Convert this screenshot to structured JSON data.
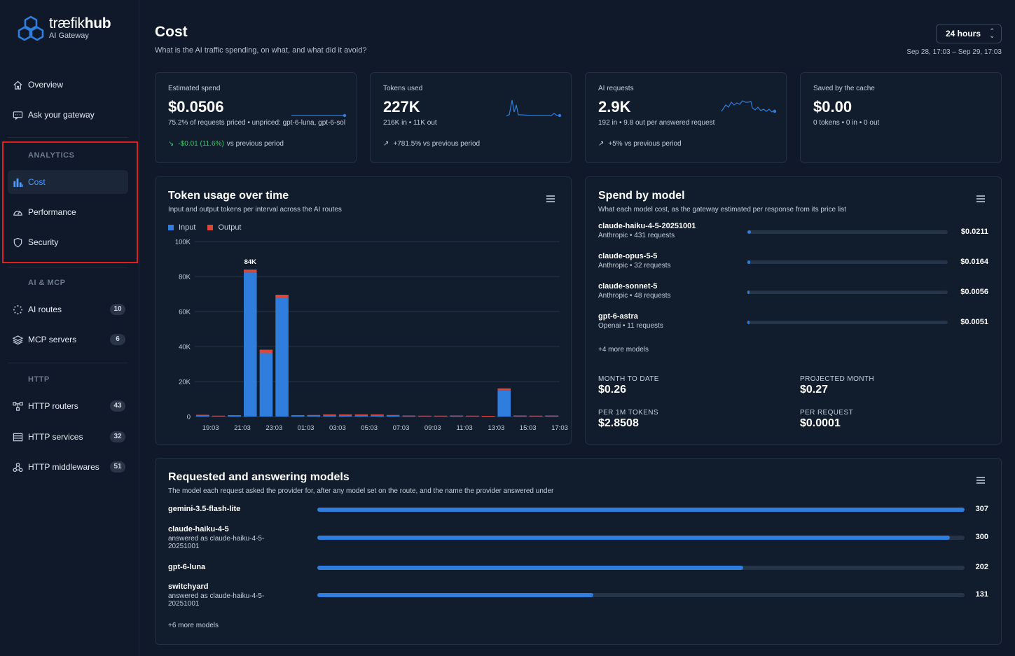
{
  "brand": {
    "name_light": "træfik",
    "name_bold": "hub",
    "subtitle": "AI Gateway"
  },
  "nav": {
    "top": [
      {
        "label": "Overview",
        "icon": "home-icon"
      },
      {
        "label": "Ask your gateway",
        "icon": "chat-icon"
      }
    ],
    "analytics_heading": "ANALYTICS",
    "analytics": [
      {
        "label": "Cost",
        "icon": "bar-chart-icon",
        "active": true
      },
      {
        "label": "Performance",
        "icon": "gauge-icon"
      },
      {
        "label": "Security",
        "icon": "shield-icon"
      }
    ],
    "aimcp_heading": "AI & MCP",
    "aimcp": [
      {
        "label": "AI routes",
        "icon": "spinner-icon",
        "badge": "10"
      },
      {
        "label": "MCP servers",
        "icon": "layers-icon",
        "badge": "6"
      }
    ],
    "http_heading": "HTTP",
    "http": [
      {
        "label": "HTTP routers",
        "icon": "router-icon",
        "badge": "43"
      },
      {
        "label": "HTTP services",
        "icon": "services-icon",
        "badge": "32"
      },
      {
        "label": "HTTP middlewares",
        "icon": "middleware-icon",
        "badge": "51"
      }
    ]
  },
  "header": {
    "title": "Cost",
    "subtitle": "What is the AI traffic spending, on what, and what did it avoid?",
    "range": "24 hours",
    "range_dates": "Sep 28, 17:03 – Sep 29, 17:03"
  },
  "kpis": {
    "spend": {
      "label": "Estimated spend",
      "value": "$0.0506",
      "detail": "75.2% of requests priced • unpriced: gpt-6-luna, gpt-6-sol",
      "trend_value": "-$0.01 (11.6%)",
      "trend_text": "vs previous period"
    },
    "tokens": {
      "label": "Tokens used",
      "value": "227K",
      "detail": "216K in • 11K out",
      "trend_text": "+781.5% vs previous period"
    },
    "requests": {
      "label": "AI requests",
      "value": "2.9K",
      "detail": "192 in • 9.8 out per answered request",
      "trend_text": "+5% vs previous period"
    },
    "cache": {
      "label": "Saved by the cache",
      "value": "$0.00",
      "detail": "0 tokens • 0 in • 0 out"
    }
  },
  "token_usage": {
    "title": "Token usage over time",
    "subtitle": "Input and output tokens per interval across the AI routes",
    "legend_input": "Input",
    "legend_output": "Output",
    "peak_label": "84K"
  },
  "chart_data": {
    "type": "bar",
    "stacked": true,
    "x_tick_labels": [
      "19:03",
      "21:03",
      "23:03",
      "01:03",
      "03:03",
      "05:03",
      "07:03",
      "09:03",
      "11:03",
      "13:03",
      "15:03",
      "17:03"
    ],
    "y_tick_labels": [
      "0",
      "20K",
      "40K",
      "60K",
      "80K",
      "100K"
    ],
    "ylim": [
      0,
      100000
    ],
    "series": [
      {
        "name": "Input",
        "color": "#2f7ddd",
        "values": [
          800,
          400,
          600,
          82500,
          36200,
          67800,
          600,
          700,
          900,
          900,
          900,
          900,
          700,
          500,
          400,
          400,
          500,
          400,
          300,
          15100,
          500,
          400,
          500
        ]
      },
      {
        "name": "Output",
        "color": "#d9483b",
        "values": [
          200,
          100,
          200,
          1500,
          2000,
          1800,
          200,
          200,
          300,
          300,
          300,
          300,
          200,
          100,
          100,
          100,
          100,
          100,
          100,
          1000,
          100,
          100,
          100
        ]
      }
    ]
  },
  "spend_by_model": {
    "title": "Spend by model",
    "subtitle": "What each model cost, as the gateway estimated per response from its price list",
    "models": [
      {
        "name": "claude-haiku-4-5-20251001",
        "meta": "Anthropic • 431 requests",
        "value": "$0.0211",
        "fraction": 0.018
      },
      {
        "name": "claude-opus-5-5",
        "meta": "Anthropic • 32 requests",
        "value": "$0.0164",
        "fraction": 0.014
      },
      {
        "name": "claude-sonnet-5",
        "meta": "Anthropic • 48 requests",
        "value": "$0.0056",
        "fraction": 0.005
      },
      {
        "name": "gpt-6-astra",
        "meta": "Openai • 11 requests",
        "value": "$0.0051",
        "fraction": 0.004
      }
    ],
    "more": "+4 more models",
    "metrics": [
      {
        "label": "MONTH TO DATE",
        "value": "$0.26"
      },
      {
        "label": "PROJECTED MONTH",
        "value": "$0.27"
      },
      {
        "label": "PER 1M TOKENS",
        "value": "$2.8508"
      },
      {
        "label": "PER REQUEST",
        "value": "$0.0001"
      }
    ]
  },
  "requested_models": {
    "title": "Requested and answering models",
    "subtitle": "The model each request asked the provider for, after any model set on the route, and the name the provider answered under",
    "models": [
      {
        "name": "gemini-3.5-flash-lite",
        "meta": "",
        "value": "307",
        "count": 307
      },
      {
        "name": "claude-haiku-4-5",
        "meta": "answered as claude-haiku-4-5-20251001",
        "value": "300",
        "count": 300
      },
      {
        "name": "gpt-6-luna",
        "meta": "",
        "value": "202",
        "count": 202
      },
      {
        "name": "switchyard",
        "meta": "answered as claude-haiku-4-5-20251001",
        "value": "131",
        "count": 131
      }
    ],
    "more": "+6 more models"
  }
}
